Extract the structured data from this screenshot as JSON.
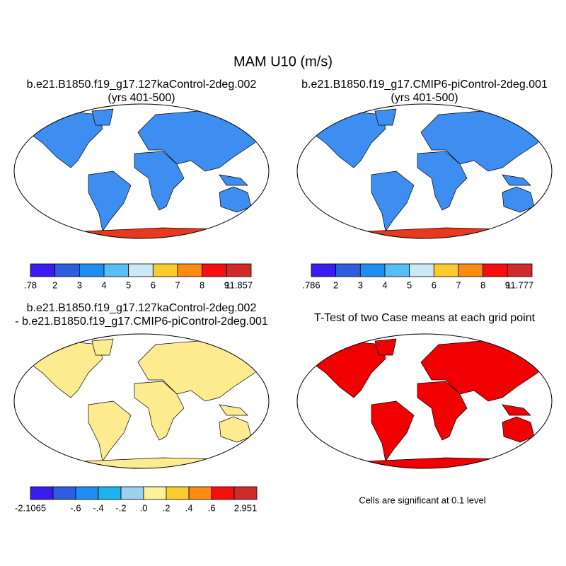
{
  "title": "MAM U10 (m/s)",
  "panels": [
    {
      "title": "b.e21.B1850.f19_g17.127kaControl-2deg.002",
      "subtitle": "(yrs 401-500)",
      "land_color": "#3d8ef0",
      "south_color": "#e8391f",
      "colorbar": {
        "colors": [
          "#3a1cf0",
          "#2e5ee0",
          "#1e8ef2",
          "#58bdf5",
          "#cde8f5",
          "#fdcb2c",
          "#fe8a0f",
          "#f80e0e",
          "#d02a2a"
        ],
        "ticks": [
          {
            "value": 0.78,
            "label": ".78"
          },
          2,
          3,
          4,
          5,
          6,
          7,
          8,
          9,
          11.857
        ]
      }
    },
    {
      "title": "b.e21.B1850.f19_g17.CMIP6-piControl-2deg.001",
      "subtitle": "(yrs 401-500)",
      "land_color": "#3d8ef0",
      "south_color": "#e8391f",
      "colorbar": {
        "colors": [
          "#3a1cf0",
          "#2e5ee0",
          "#1e8ef2",
          "#58bdf5",
          "#cde8f5",
          "#fdcb2c",
          "#fe8a0f",
          "#f80e0e",
          "#d02a2a"
        ],
        "ticks": [
          {
            "value": 0.786,
            "label": ".786"
          },
          2,
          3,
          4,
          5,
          6,
          7,
          8,
          9,
          11.777
        ]
      }
    },
    {
      "title": "b.e21.B1850.f19_g17.127kaControl-2deg.002",
      "subtitle": "- b.e21.B1850.f19_g17.CMIP6-piControl-2deg.001",
      "land_color": "#fdeb8f",
      "south_color": "#fdeb8f",
      "colorbar": {
        "colors": [
          "#3a1cf0",
          "#2e5ee0",
          "#1e8ef2",
          "#1ab4f0",
          "#9fd0ee",
          "#fdf29a",
          "#fdcb2c",
          "#fe8a0f",
          "#f80e0e",
          "#d02a2a"
        ],
        "ticks": [
          -2.1065,
          null,
          {
            "value": -0.6,
            "label": "-.6"
          },
          {
            "value": -0.4,
            "label": "-.4"
          },
          {
            "value": -0.2,
            "label": "-.2"
          },
          {
            "value": 0,
            "label": ".0"
          },
          {
            "value": 0.2,
            "label": ".2"
          },
          {
            "value": 0.4,
            "label": ".4"
          },
          {
            "value": 0.6,
            "label": ".6"
          },
          null,
          2.951
        ]
      }
    },
    {
      "title": "T-Test of two Case means at each grid point",
      "land_color": "#f00000",
      "south_color": "#f00000",
      "note": "Cells are significant at 0.1 level"
    }
  ]
}
